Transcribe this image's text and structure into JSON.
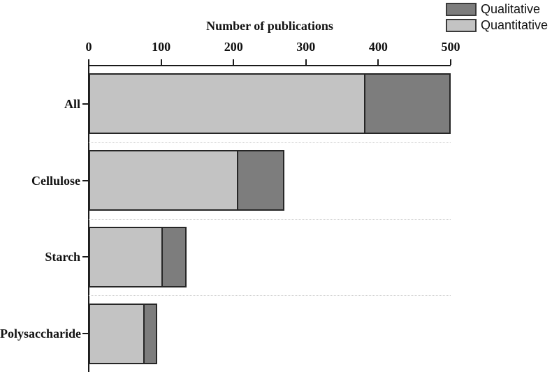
{
  "figure": {
    "background": "#ffffff"
  },
  "legend": {
    "position": "top-right",
    "items": [
      {
        "label": "Qualitative",
        "color": "#7d7d7d"
      },
      {
        "label": "Quantitative",
        "color": "#c3c3c3"
      }
    ]
  },
  "chart_data": {
    "type": "bar",
    "orientation": "horizontal",
    "stacked": true,
    "title": "Number of publications",
    "xlabel": "Number of publications",
    "ylabel": "",
    "axis_position": "top",
    "xlim": [
      0,
      500
    ],
    "x_ticks": [
      "0",
      "100",
      "200",
      "300",
      "400",
      "500"
    ],
    "categories": [
      "All",
      "Cellulose",
      "Starch",
      "Polysaccharide"
    ],
    "series": [
      {
        "name": "Quantitative",
        "color": "#c3c3c3",
        "values": [
          380,
          205,
          100,
          75
        ]
      },
      {
        "name": "Qualitative",
        "color": "#7d7d7d",
        "values": [
          120,
          65,
          35,
          20
        ]
      }
    ],
    "totals": [
      500,
      270,
      135,
      95
    ],
    "grid": "dotted horizontal separators between category bands",
    "legend_position": "top-right",
    "colors": {
      "axis": "#1a1a1a",
      "bar_border": "#262626",
      "gridline": "#d2d2d2",
      "quantitative_fill": "#c3c3c3",
      "qualitative_fill": "#7d7d7d"
    }
  }
}
